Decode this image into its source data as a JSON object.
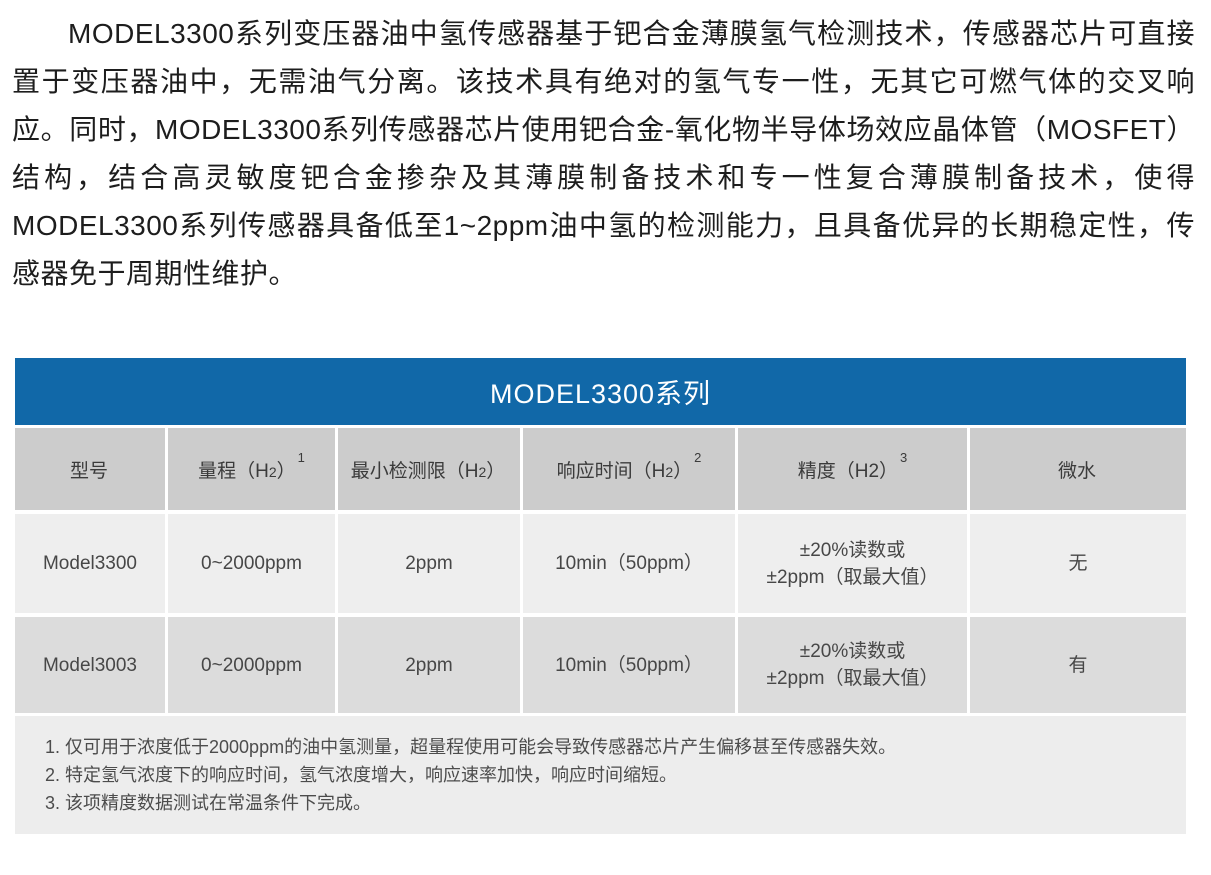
{
  "intro_paragraph": "MODEL3300系列变压器油中氢传感器基于钯合金薄膜氢气检测技术，传感器芯片可直接置于变压器油中，无需油气分离。该技术具有绝对的氢气专一性，无其它可燃气体的交叉响应。同时，MODEL3300系列传感器芯片使用钯合金-氧化物半导体场效应晶体管（MOSFET）结构，结合高灵敏度钯合金掺杂及其薄膜制备技术和专一性复合薄膜制备技术，使得MODEL3300系列传感器具备低至1~2ppm油中氢的检测能力，且具备优异的长期稳定性，传感器免于周期性维护。",
  "table": {
    "title": "MODEL3300系列",
    "columns": [
      {
        "pre": "型号",
        "sub": "",
        "post": "",
        "sup": ""
      },
      {
        "pre": "量程（H",
        "sub": "2",
        "post": "）",
        "sup": "1"
      },
      {
        "pre": "最小检测限（H",
        "sub": "2",
        "post": "）",
        "sup": ""
      },
      {
        "pre": "响应时间（H",
        "sub": "2",
        "post": "）",
        "sup": "2"
      },
      {
        "pre": "精度（H2",
        "sub": "",
        "post": "）",
        "sup": "3"
      },
      {
        "pre": "微水",
        "sub": "",
        "post": "",
        "sup": ""
      }
    ],
    "rows": [
      {
        "model": "Model3300",
        "range": "0~2000ppm",
        "min_detection": "2ppm",
        "response_time": "10min（50ppm）",
        "accuracy_line1": "±20%读数或",
        "accuracy_line2": "±2ppm（取最大值）",
        "micro_water": "无"
      },
      {
        "model": "Model3003",
        "range": "0~2000ppm",
        "min_detection": "2ppm",
        "response_time": "10min（50ppm）",
        "accuracy_line1": "±20%读数或",
        "accuracy_line2": "±2ppm（取最大值）",
        "micro_water": "有"
      }
    ],
    "footnotes": [
      "1. 仅可用于浓度低于2000ppm的油中氢测量，超量程使用可能会导致传感器芯片产生偏移甚至传感器失效。",
      "2. 特定氢气浓度下的响应时间，氢气浓度增大，响应速率加快，响应时间缩短。",
      "3. 该项精度数据测试在常温条件下完成。"
    ]
  },
  "colors": {
    "title_bar_blue": "#1168a8",
    "title_text": "#ffffff",
    "column_header_gray": "#cccccc",
    "row_odd_gray": "#eeeeee",
    "row_even_gray": "#dcdcdc",
    "footnote_gray": "#ededed"
  }
}
